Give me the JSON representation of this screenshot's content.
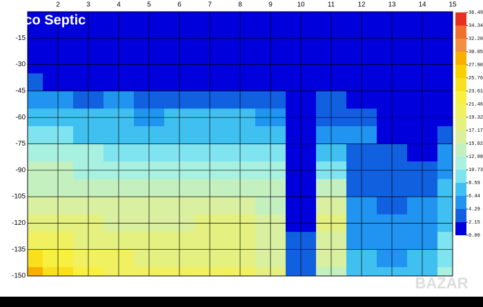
{
  "chart_data": {
    "type": "contour",
    "title": "Eco Septic",
    "watermark": "BAZAR",
    "x": [
      1,
      2,
      3,
      4,
      5,
      6,
      7,
      8,
      9,
      10,
      11,
      12,
      13,
      14,
      15
    ],
    "y": [
      0,
      -10,
      -20,
      -30,
      -40,
      -50,
      -60,
      -70,
      -80,
      -90,
      -100,
      -110,
      -120,
      -130,
      -140,
      -150
    ],
    "z": [
      [
        0.5,
        0.5,
        0.5,
        0.5,
        0.5,
        0.5,
        0.5,
        0.5,
        0.5,
        0.5,
        0.5,
        0.5,
        0.5,
        0.5,
        0.5
      ],
      [
        0.5,
        0.5,
        0.5,
        0.5,
        0.5,
        0.5,
        0.5,
        0.5,
        0.5,
        0.5,
        0.5,
        0.5,
        0.5,
        0.5,
        0.5
      ],
      [
        0.5,
        0.5,
        0.5,
        0.5,
        0.5,
        0.5,
        0.5,
        0.5,
        0.5,
        0.5,
        0.5,
        0.5,
        0.5,
        0.5,
        0.5
      ],
      [
        0.5,
        0.5,
        0.5,
        0.5,
        0.5,
        0.5,
        0.5,
        0.5,
        0.5,
        0.5,
        0.5,
        0.5,
        0.5,
        0.5,
        0.5
      ],
      [
        2.5,
        2,
        2,
        1.5,
        1,
        1,
        1,
        1,
        1.5,
        1,
        1,
        1,
        1,
        1,
        1
      ],
      [
        5,
        4.5,
        4,
        4.5,
        3.5,
        4,
        4,
        4,
        3.5,
        1,
        2.5,
        2,
        1,
        1,
        1
      ],
      [
        7,
        7,
        6.5,
        6.5,
        6,
        6.5,
        6.5,
        6.5,
        5,
        1,
        4,
        4,
        1.5,
        1,
        2
      ],
      [
        9,
        9,
        8.5,
        8.5,
        8,
        8.5,
        8,
        8,
        7,
        1,
        6,
        5,
        2,
        1,
        4
      ],
      [
        11,
        11,
        11,
        10.5,
        10,
        10,
        10,
        10,
        9,
        1,
        8,
        4,
        2.5,
        2,
        5
      ],
      [
        13,
        13,
        12.5,
        12.5,
        12,
        12,
        12,
        12.5,
        11,
        1,
        10,
        3.5,
        3,
        3,
        6
      ],
      [
        15,
        15,
        14,
        14,
        14,
        14.5,
        14,
        14,
        13,
        1.5,
        14,
        4,
        3.5,
        4,
        6.5
      ],
      [
        17,
        16.5,
        16,
        16,
        16,
        16,
        16,
        16,
        15,
        1.5,
        17,
        4.5,
        4,
        4.5,
        7
      ],
      [
        19,
        18,
        17.5,
        17,
        17,
        17,
        17.5,
        17.5,
        16,
        2,
        18,
        5,
        4.5,
        5,
        8
      ],
      [
        21,
        20,
        19,
        18.5,
        18,
        18,
        18,
        18,
        16.5,
        2.5,
        17,
        6,
        5,
        6,
        9
      ],
      [
        25,
        22,
        20.5,
        19.5,
        19,
        19,
        19,
        19,
        17,
        3,
        16,
        7,
        6,
        7,
        10
      ],
      [
        30,
        24,
        22,
        21,
        20,
        20,
        20,
        20,
        18,
        4,
        15,
        8,
        7,
        8,
        11
      ]
    ],
    "xlim": [
      1,
      15
    ],
    "ylim": [
      -150,
      0
    ],
    "xticks": [
      2,
      3,
      4,
      5,
      6,
      7,
      8,
      9,
      10,
      11,
      12,
      13,
      14,
      15
    ],
    "yticks": [
      -15,
      -30,
      -45,
      -60,
      -75,
      -90,
      -105,
      -120,
      -135,
      -150
    ],
    "levels": [
      {
        "value": 0,
        "label": "0.00"
      },
      2.15,
      4.29,
      6.44,
      8.59,
      10.73,
      12.88,
      15.02,
      17.17,
      19.32,
      21.46,
      23.61,
      25.76,
      {
        "value": 27.9,
        "label": "27.90"
      },
      30.05,
      {
        "value": 32.2,
        "label": "32.20"
      },
      34.34,
      36.49
    ],
    "colors": [
      "#0000dd",
      "#1060e0",
      "#2094f0",
      "#40c0f0",
      "#80e4f0",
      "#a8f0e0",
      "#c4f0c0",
      "#d8f0a0",
      "#e4f080",
      "#f0f060",
      "#f8f040",
      "#f8e020",
      "#f8d000",
      "#f8b000",
      "#f09040",
      "#f07030",
      "#e83020"
    ],
    "grid": true
  }
}
